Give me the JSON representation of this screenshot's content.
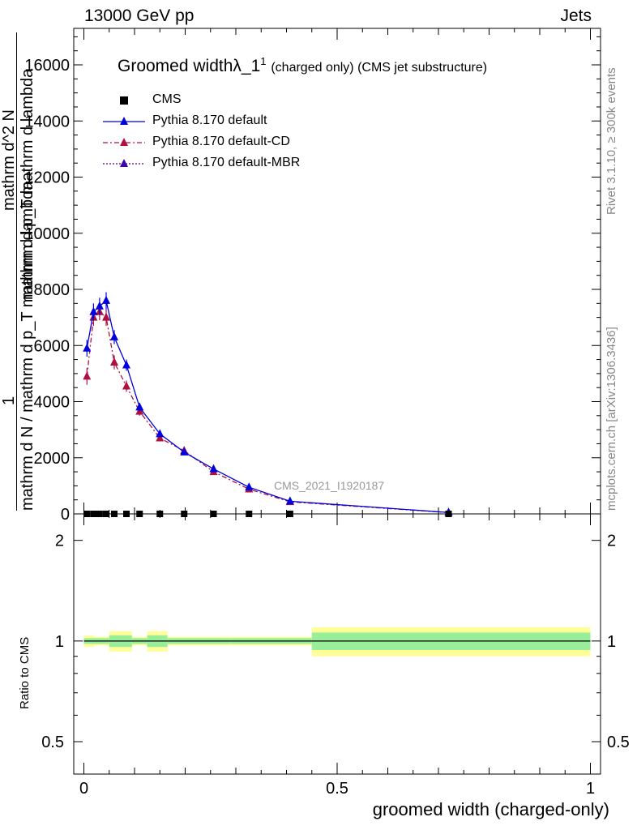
{
  "header": {
    "left": "13000 GeV pp",
    "right": "Jets"
  },
  "side_labels": {
    "rivet": "Rivet 3.1.10, ≥ 300k events",
    "mcplots": "mcplots.cern.ch [arXiv:1306.3436]"
  },
  "plot": {
    "title_main": "Groomed width",
    "title_lambda": "λ_1",
    "title_sup": "1",
    "title_suffix": "(charged only) (CMS jet substructure)",
    "watermark": "CMS_2021_I1920187",
    "ylabel_numerator": "1",
    "ylabel_denominator": "mathrm d N / mathrm d p_T mathrm d lambda",
    "ylabel_top": "mathrm d^2 N",
    "ylabel_mid": "mathrm d p_T mathrm d lambda",
    "ratio_ylabel": "Ratio to CMS",
    "xlabel": "groomed width (charged-only)"
  },
  "legend": [
    {
      "name": "CMS",
      "color": "#000000",
      "marker": "square",
      "dash": ""
    },
    {
      "name": "Pythia 8.170 default",
      "color": "#0000dd",
      "marker": "triangle",
      "dash": ""
    },
    {
      "name": "Pythia 8.170 default-CD",
      "color": "#b01040",
      "marker": "triangle",
      "dash": "6,3,2,3"
    },
    {
      "name": "Pythia 8.170 default-MBR",
      "color": "#4000aa",
      "marker": "triangle",
      "dash": "2,2"
    }
  ],
  "chart_data": {
    "type": "line",
    "xlim": [
      -0.02,
      1.02
    ],
    "main_ylim": [
      0,
      17300
    ],
    "main_yticks": [
      0,
      2000,
      4000,
      6000,
      8000,
      10000,
      12000,
      14000,
      16000
    ],
    "main_ytick_labels": [
      "0",
      "2000",
      "4000",
      "6000",
      "8000",
      "10000",
      "12000",
      "14000",
      "16000"
    ],
    "ratio_ylim": [
      0.4,
      2.4
    ],
    "ratio_yticks": [
      0.5,
      1,
      2
    ],
    "ratio_ytick_labels": [
      "0.5",
      "1",
      "2"
    ],
    "xticks": [
      0,
      0.5,
      1
    ],
    "xtick_labels": [
      "0",
      "0.5",
      "1"
    ],
    "ratio_bins": [
      {
        "lo": 0.0,
        "hi": 0.02,
        "green": 0.02,
        "yellow": 0.04
      },
      {
        "lo": 0.02,
        "hi": 0.05,
        "green": 0.02,
        "yellow": 0.03
      },
      {
        "lo": 0.05,
        "hi": 0.095,
        "green": 0.04,
        "yellow": 0.07
      },
      {
        "lo": 0.095,
        "hi": 0.125,
        "green": 0.02,
        "yellow": 0.03
      },
      {
        "lo": 0.125,
        "hi": 0.165,
        "green": 0.04,
        "yellow": 0.07
      },
      {
        "lo": 0.165,
        "hi": 0.29,
        "green": 0.02,
        "yellow": 0.03
      },
      {
        "lo": 0.29,
        "hi": 0.45,
        "green": 0.02,
        "yellow": 0.03
      },
      {
        "lo": 0.45,
        "hi": 1.0,
        "green": 0.06,
        "yellow": 0.1
      }
    ],
    "cms_x": [
      0.006,
      0.019,
      0.031,
      0.044,
      0.06,
      0.084,
      0.11,
      0.15,
      0.198,
      0.256,
      0.326,
      0.407,
      0.72
    ],
    "series": [
      {
        "name": "Pythia 8.170 default",
        "color": "#0000dd",
        "x": [
          0.006,
          0.019,
          0.031,
          0.044,
          0.06,
          0.084,
          0.11,
          0.15,
          0.198,
          0.256,
          0.326,
          0.407,
          0.72
        ],
        "y": [
          5900,
          7200,
          7400,
          7600,
          6300,
          5300,
          3800,
          2850,
          2200,
          1600,
          950,
          450,
          50
        ],
        "err": [
          300,
          300,
          300,
          300,
          250,
          200,
          150,
          120,
          100,
          80,
          60,
          40,
          10
        ]
      },
      {
        "name": "Pythia 8.170 default-CD",
        "color": "#b01040",
        "x": [
          0.006,
          0.019,
          0.031,
          0.044,
          0.06,
          0.084,
          0.11,
          0.15,
          0.198,
          0.256,
          0.326,
          0.407,
          0.72
        ],
        "y": [
          4900,
          7000,
          7200,
          7000,
          5400,
          4550,
          3650,
          2700,
          2250,
          1500,
          880,
          430,
          45
        ],
        "err": [
          300,
          300,
          300,
          300,
          250,
          200,
          150,
          120,
          100,
          80,
          60,
          40,
          10
        ]
      }
    ]
  }
}
